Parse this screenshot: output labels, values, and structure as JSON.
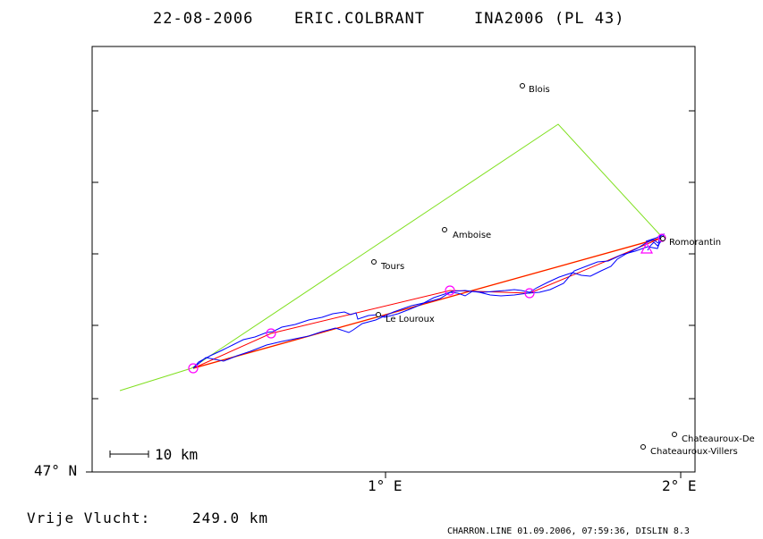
{
  "header": {
    "date": "22-08-2006",
    "pilot": "ERIC.COLBRANT",
    "competition": "INA2006 (PL 43)"
  },
  "axes": {
    "y_label": "47° N",
    "x_labels": [
      "1° E",
      "2° E"
    ]
  },
  "scale_bar": {
    "label": "10 km"
  },
  "cities": [
    {
      "name": "Blois"
    },
    {
      "name": "Amboise"
    },
    {
      "name": "Tours"
    },
    {
      "name": "Le Louroux"
    },
    {
      "name": "Romorantin"
    },
    {
      "name": "Chateauroux-De"
    },
    {
      "name": "Chateauroux-Villers"
    }
  ],
  "footer": {
    "distance_label": "Vrije Vlucht:",
    "distance_value": "249.0 km",
    "credit": "CHARRON.LINE 01.09.2006, 07:59:36, DISLIN 8.3"
  },
  "colors": {
    "task_line": "#80e020",
    "track": "#0000ff",
    "optimized": "#ff0000",
    "straight": "#ffa000",
    "turnpoints": "#ff00ff"
  }
}
